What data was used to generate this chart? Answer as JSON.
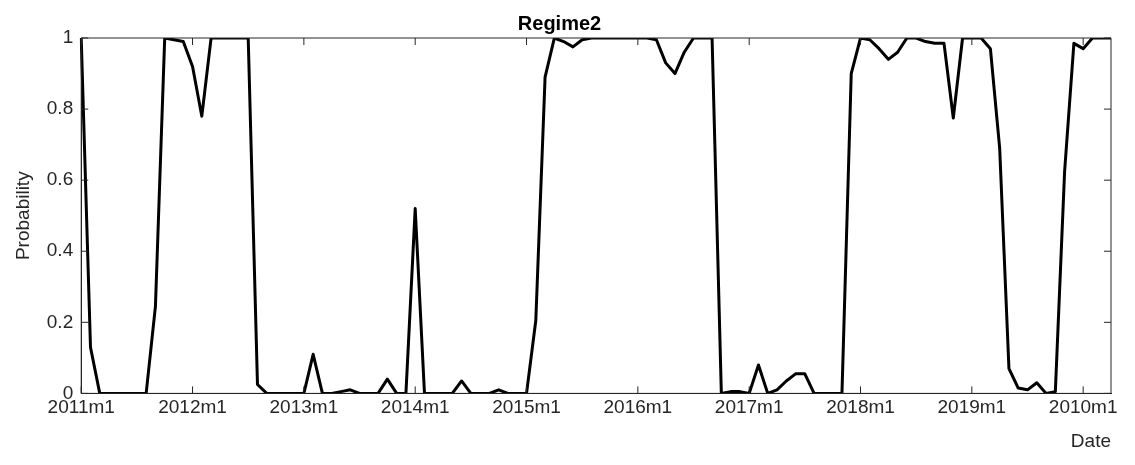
{
  "chart_data": {
    "type": "line",
    "title": "Regime2",
    "xlabel": "Date",
    "ylabel": "Probability",
    "categories": [
      "2011m1",
      null,
      null,
      null,
      null,
      null,
      null,
      null,
      null,
      null,
      null,
      null,
      "2012m1",
      null,
      null,
      null,
      null,
      null,
      null,
      null,
      null,
      null,
      null,
      null,
      "2013m1",
      null,
      null,
      null,
      null,
      null,
      null,
      null,
      null,
      null,
      null,
      null,
      "2014m1",
      null,
      null,
      null,
      null,
      null,
      null,
      null,
      null,
      null,
      null,
      null,
      "2015m1",
      null,
      null,
      null,
      null,
      null,
      null,
      null,
      null,
      null,
      null,
      null,
      "2016m1",
      null,
      null,
      null,
      null,
      null,
      null,
      null,
      null,
      null,
      null,
      null,
      "2017m1",
      null,
      null,
      null,
      null,
      null,
      null,
      null,
      null,
      null,
      null,
      null,
      "2018m1",
      null,
      null,
      null,
      null,
      null,
      null,
      null,
      null,
      null,
      null,
      null,
      "2019m1",
      null,
      null,
      null,
      null,
      null,
      null,
      null,
      null,
      null,
      null,
      null,
      "2010m1",
      null,
      null,
      null
    ],
    "series": [
      {
        "color": "#000000",
        "values": [
          1,
          0.13,
          0,
          0,
          0,
          0,
          0,
          0,
          0.245,
          1,
          0.995,
          0.99,
          0.92,
          0.78,
          1,
          1,
          1,
          1,
          1,
          0.025,
          0,
          0,
          0,
          0,
          0,
          0.11,
          0,
          0,
          0.005,
          0.01,
          0,
          0,
          0,
          0.04,
          0,
          0,
          0.52,
          0,
          0,
          0,
          0,
          0.035,
          0,
          0,
          0,
          0.01,
          0,
          0,
          0,
          0.205,
          0.89,
          1,
          0.99,
          0.975,
          0.995,
          1,
          1,
          1,
          1,
          1,
          1,
          1,
          0.995,
          0.93,
          0.9,
          0.96,
          1,
          1,
          1,
          0,
          0.005,
          0.005,
          0,
          0.08,
          0,
          0.01,
          0.035,
          0.055,
          0.055,
          0,
          0,
          0,
          0,
          0.9,
          1,
          0.995,
          0.97,
          0.94,
          0.96,
          1,
          1,
          0.99,
          0.985,
          0.985,
          0.775,
          1,
          1,
          1,
          0.97,
          0.69,
          0.07,
          0.015,
          0.01,
          0.03,
          0,
          0.005,
          0.625,
          0.985,
          0.97,
          1,
          1,
          1
        ]
      }
    ],
    "ylim": [
      0,
      1
    ],
    "yticks": [
      0,
      0.2,
      0.4,
      0.6,
      0.8,
      1
    ],
    "grid": false,
    "legend": false,
    "marker": "none",
    "line_style": "solid"
  }
}
